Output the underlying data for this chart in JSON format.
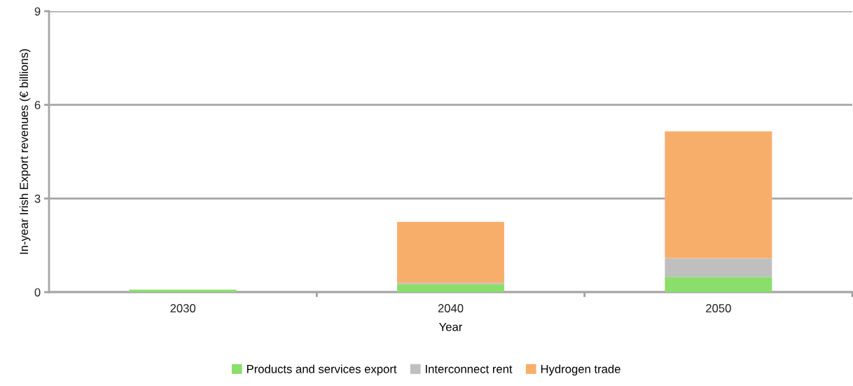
{
  "chart_data": {
    "type": "bar",
    "stacked": true,
    "xlabel": "Year",
    "ylabel": "In-year Irish Export revenues (€ billions)",
    "categories": [
      "2030",
      "2040",
      "2050"
    ],
    "series": [
      {
        "name": "Products and services export",
        "color": "#8ade6b",
        "values": [
          0.08,
          0.25,
          0.49
        ]
      },
      {
        "name": "Interconnect rent",
        "color": "#bfbfbf",
        "values": [
          0,
          0.05,
          0.6
        ]
      },
      {
        "name": "Hydrogen trade",
        "color": "#f8ae6b",
        "values": [
          0,
          1.95,
          4.06
        ]
      }
    ],
    "ylim": [
      0,
      9
    ],
    "yticks": [
      0,
      3,
      6,
      9
    ],
    "grid": "y",
    "legend": "bottom"
  }
}
